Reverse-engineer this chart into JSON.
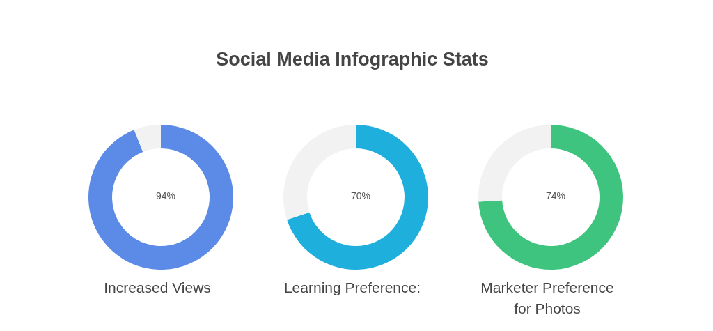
{
  "chart_data": [
    {
      "type": "donut",
      "categories": [
        null,
        null
      ],
      "values": [
        94,
        6
      ],
      "colors": [
        "#5b8be6",
        "#f2f2f2"
      ],
      "value_labels": [
        "94%",
        null
      ],
      "xlabel": "Increased Views"
    },
    {
      "type": "donut",
      "title": "Social Media Infographic Stats",
      "categories": [
        null,
        null
      ],
      "values": [
        70,
        30
      ],
      "colors": [
        "#1fafdc",
        "#f2f2f2"
      ],
      "value_labels": [
        "70%",
        null
      ],
      "xlabel": "Learning Preference:"
    },
    {
      "type": "donut",
      "categories": [
        null,
        null
      ],
      "values": [
        74,
        26
      ],
      "colors": [
        "#3fc47f",
        "#f2f2f2"
      ],
      "value_labels": [
        "74%",
        null
      ],
      "xlabel": "Marketer Preference for Photos"
    }
  ]
}
